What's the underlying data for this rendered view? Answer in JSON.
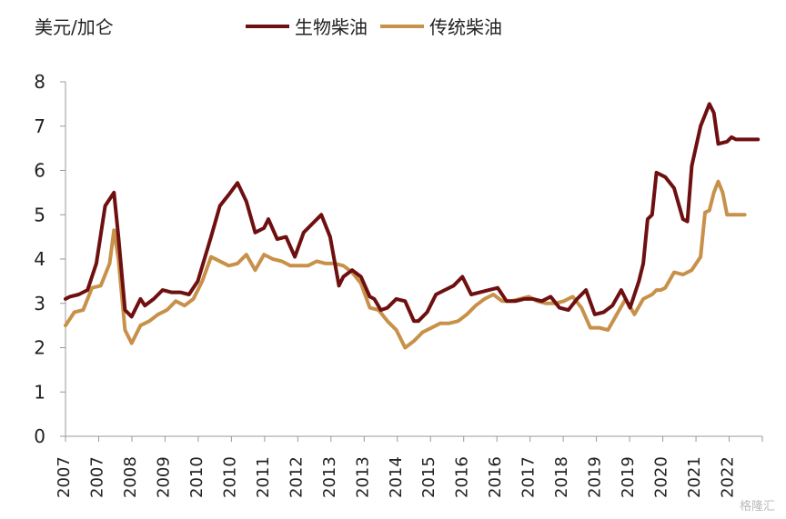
{
  "chart_data": {
    "type": "line",
    "unit_label": "美元/加仑",
    "ylim": [
      0,
      8
    ],
    "y_ticks": [
      "0",
      "1",
      "2",
      "3",
      "4",
      "5",
      "6",
      "7",
      "8"
    ],
    "x_ticks": [
      "2007",
      "2007",
      "2008",
      "2009",
      "2010",
      "2010",
      "2011",
      "2012",
      "2013",
      "2013",
      "2014",
      "2015",
      "2016",
      "2016",
      "2017",
      "2018",
      "2019",
      "2019",
      "2020",
      "2021",
      "2022"
    ],
    "series": [
      {
        "name": "生物柴油",
        "color": "#6e0f10",
        "x": [
          2007.0,
          2007.1,
          2007.3,
          2007.5,
          2007.7,
          2007.9,
          2008.1,
          2008.2,
          2008.35,
          2008.5,
          2008.7,
          2008.8,
          2009.0,
          2009.2,
          2009.4,
          2009.6,
          2009.8,
          2010.0,
          2010.3,
          2010.5,
          2010.7,
          2010.9,
          2011.1,
          2011.3,
          2011.5,
          2011.6,
          2011.8,
          2012.0,
          2012.2,
          2012.4,
          2012.6,
          2012.8,
          2013.0,
          2013.2,
          2013.3,
          2013.5,
          2013.7,
          2013.9,
          2014.0,
          2014.15,
          2014.3,
          2014.5,
          2014.7,
          2014.9,
          2015.0,
          2015.2,
          2015.4,
          2015.6,
          2015.8,
          2016.0,
          2016.2,
          2016.4,
          2016.6,
          2016.8,
          2017.0,
          2017.2,
          2017.4,
          2017.6,
          2017.8,
          2018.0,
          2018.2,
          2018.4,
          2018.6,
          2018.8,
          2019.0,
          2019.2,
          2019.4,
          2019.6,
          2019.8,
          2020.0,
          2020.1,
          2020.2,
          2020.3,
          2020.4,
          2020.6,
          2020.8,
          2021.0,
          2021.1,
          2021.2,
          2021.4,
          2021.6,
          2021.7,
          2021.8,
          2022.0,
          2022.1,
          2022.2,
          2022.3,
          2022.4,
          2022.5,
          2022.6,
          2022.7
        ],
        "y": [
          3.1,
          3.15,
          3.2,
          3.3,
          3.9,
          5.2,
          5.5,
          4.5,
          2.85,
          2.7,
          3.1,
          2.95,
          3.1,
          3.3,
          3.25,
          3.25,
          3.2,
          3.5,
          4.5,
          5.2,
          5.45,
          5.72,
          5.3,
          4.6,
          4.7,
          4.9,
          4.45,
          4.5,
          4.05,
          4.6,
          4.8,
          5.0,
          4.5,
          3.4,
          3.6,
          3.75,
          3.6,
          3.15,
          3.1,
          2.85,
          2.9,
          3.1,
          3.05,
          2.6,
          2.6,
          2.8,
          3.2,
          3.3,
          3.4,
          3.6,
          3.2,
          3.25,
          3.3,
          3.35,
          3.05,
          3.05,
          3.1,
          3.1,
          3.05,
          3.15,
          2.9,
          2.85,
          3.1,
          3.3,
          2.75,
          2.8,
          2.95,
          3.3,
          2.9,
          3.5,
          3.9,
          4.9,
          5.0,
          5.95,
          5.85,
          5.6,
          4.9,
          4.85,
          6.1,
          7.0,
          7.5,
          7.3,
          6.6,
          6.65,
          6.75,
          6.7,
          6.7,
          6.7,
          6.7,
          6.7,
          6.7
        ]
      },
      {
        "name": "传统柴油",
        "color": "#c8914a",
        "x": [
          2007.0,
          2007.2,
          2007.4,
          2007.6,
          2007.8,
          2008.0,
          2008.1,
          2008.2,
          2008.35,
          2008.5,
          2008.7,
          2008.9,
          2009.1,
          2009.3,
          2009.5,
          2009.7,
          2009.9,
          2010.1,
          2010.3,
          2010.5,
          2010.7,
          2010.9,
          2011.1,
          2011.3,
          2011.5,
          2011.7,
          2011.9,
          2012.1,
          2012.3,
          2012.5,
          2012.7,
          2012.9,
          2013.1,
          2013.3,
          2013.5,
          2013.7,
          2013.9,
          2014.1,
          2014.3,
          2014.5,
          2014.7,
          2014.9,
          2015.1,
          2015.3,
          2015.5,
          2015.7,
          2015.9,
          2016.1,
          2016.3,
          2016.5,
          2016.7,
          2016.9,
          2017.1,
          2017.3,
          2017.5,
          2017.7,
          2017.9,
          2018.1,
          2018.3,
          2018.5,
          2018.7,
          2018.9,
          2019.1,
          2019.3,
          2019.5,
          2019.7,
          2019.9,
          2020.1,
          2020.3,
          2020.4,
          2020.5,
          2020.6,
          2020.8,
          2021.0,
          2021.2,
          2021.4,
          2021.5,
          2021.6,
          2021.7,
          2021.8,
          2021.9,
          2022.0,
          2022.1,
          2022.2,
          2022.3,
          2022.4
        ],
        "y": [
          2.5,
          2.8,
          2.85,
          3.35,
          3.4,
          3.9,
          4.65,
          4.0,
          2.4,
          2.1,
          2.5,
          2.6,
          2.75,
          2.85,
          3.05,
          2.95,
          3.1,
          3.5,
          4.05,
          3.95,
          3.85,
          3.9,
          4.1,
          3.75,
          4.1,
          4.0,
          3.95,
          3.85,
          3.85,
          3.85,
          3.95,
          3.9,
          3.9,
          3.85,
          3.7,
          3.45,
          2.9,
          2.85,
          2.6,
          2.4,
          2.0,
          2.15,
          2.35,
          2.45,
          2.55,
          2.55,
          2.6,
          2.75,
          2.95,
          3.1,
          3.2,
          3.05,
          3.05,
          3.1,
          3.15,
          3.05,
          3.0,
          3.0,
          3.05,
          3.15,
          2.9,
          2.45,
          2.45,
          2.4,
          2.75,
          3.1,
          2.75,
          3.1,
          3.2,
          3.3,
          3.3,
          3.35,
          3.7,
          3.65,
          3.75,
          4.05,
          5.05,
          5.1,
          5.5,
          5.75,
          5.5,
          5.0,
          5.0,
          5.0,
          5.0,
          5.0
        ]
      }
    ],
    "grid": false,
    "legend_position": "top-center"
  },
  "watermark": "格隆汇"
}
